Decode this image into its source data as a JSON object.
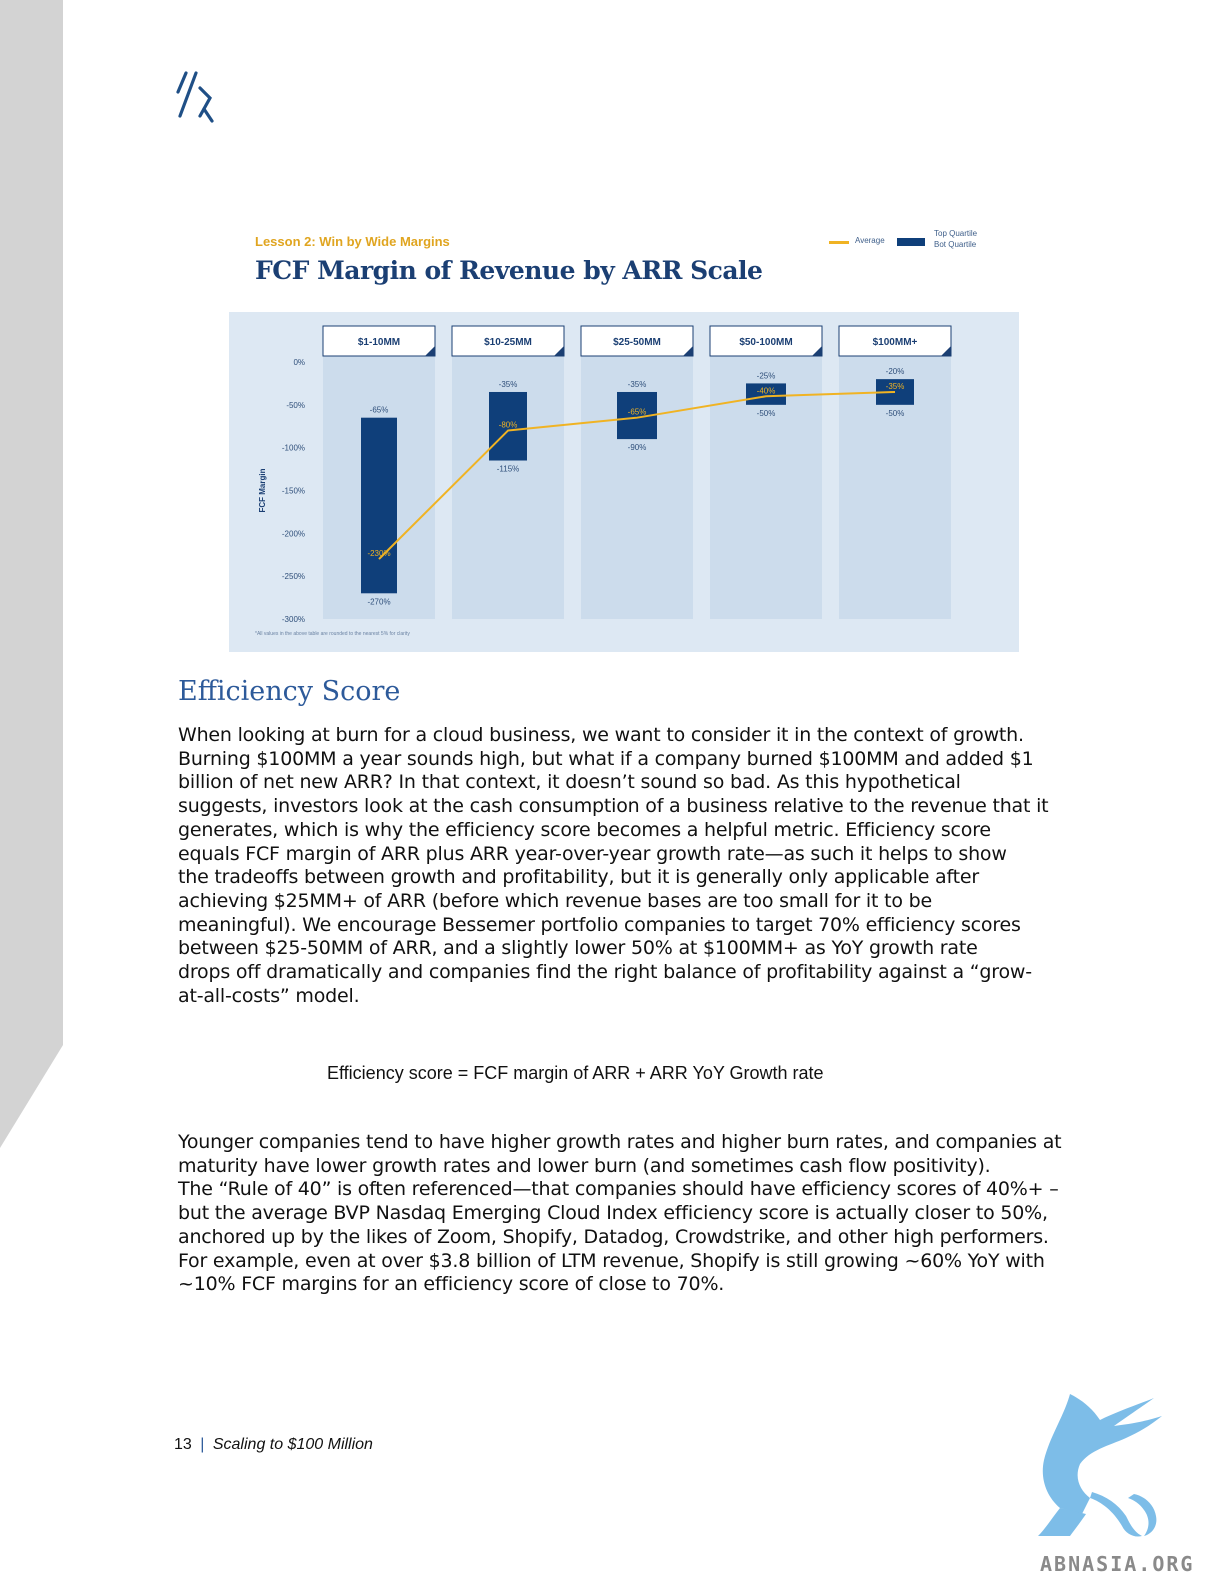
{
  "chart": {
    "lesson": "Lesson 2: Win by Wide Margins",
    "title": "FCF Margin of Revenue by ARR Scale",
    "legend": {
      "average": "Average",
      "top": "Top Quartile",
      "bot": "Bot Quartile"
    },
    "ylabel": "FCF Margin",
    "footnote": "*All values in the above table are rounded to the nearest 5% for clarity"
  },
  "chart_data": {
    "type": "bar",
    "title": "FCF Margin of Revenue by ARR Scale",
    "ylabel": "FCF Margin",
    "ylim": [
      -300,
      0
    ],
    "yticks": [
      0,
      -50,
      -100,
      -150,
      -200,
      -250,
      -300
    ],
    "yticklabels": [
      "0%",
      "-50%",
      "-100%",
      "-150%",
      "-200%",
      "-250%",
      "-300%"
    ],
    "categories": [
      "$1-10MM",
      "$10-25MM",
      "$25-50MM",
      "$50-100MM",
      "$100MM+"
    ],
    "series": [
      {
        "name": "Top Quartile",
        "values": [
          -65,
          -35,
          -35,
          -25,
          -20
        ],
        "labels": [
          "-65%",
          "-35%",
          "-35%",
          "-25%",
          "-20%"
        ]
      },
      {
        "name": "Bot Quartile",
        "values": [
          -270,
          -115,
          -90,
          -50,
          -50
        ],
        "labels": [
          "-270%",
          "-115%",
          "-90%",
          "-50%",
          "-50%"
        ]
      },
      {
        "name": "Average",
        "values": [
          -230,
          -80,
          -65,
          -40,
          -35
        ],
        "labels": [
          "-230%",
          "-80%",
          "-65%",
          "-40%",
          "-35%"
        ]
      }
    ],
    "colors": {
      "bar": "#0f3f7a",
      "average": "#f0b323",
      "column_bg": "#c6d8ea",
      "plot_bg": "#dde8f3"
    }
  },
  "section": {
    "heading": "Efficiency Score",
    "para1": "When looking at burn for a cloud business, we want to consider it in the context of growth.\nBurning $100MM a year sounds high, but what if a company burned $100MM and added $1\nbillion of net new ARR? In that context, it doesn’t sound so bad. As this hypothetical\nsuggests, investors look at the cash consumption of a business relative to the revenue that it\ngenerates, which is why the efficiency score becomes a helpful metric. Efficiency score\nequals FCF margin of ARR plus ARR year-over-year growth rate—as such it helps to show\nthe tradeoffs between growth and profitability, but it is generally only applicable after\nachieving $25MM+ of ARR (before which revenue bases are too small for it to be\nmeaningful). We encourage Bessemer portfolio companies to target 70% efficiency scores\nbetween $25-50MM of ARR, and a slightly lower 50% at $100MM+ as YoY growth rate\ndrops off dramatically and companies find the right balance of profitability against a “grow-\nat-all-costs” model.",
    "formula": "Efficiency score = FCF margin of ARR + ARR YoY Growth rate",
    "para2": "Younger companies tend to have higher growth rates and higher burn rates, and companies at\nmaturity have lower growth rates and lower burn (and sometimes cash flow positivity).\nThe “Rule of 40” is often referenced—that companies should have efficiency scores of 40%+ –\nbut the average BVP Nasdaq Emerging Cloud Index efficiency score is actually closer to 50%,\nanchored up by the likes of Zoom, Shopify, Datadog, Crowdstrike, and other high performers.\nFor example, even at over $3.8 billion of LTM revenue, Shopify is still growing ~60% YoY with\n~10% FCF margins for an efficiency score of close to 70%."
  },
  "footer": {
    "page": "13",
    "separator": "|",
    "doc_title": "Scaling to $100 Million"
  },
  "watermark": {
    "text": "ABNASIA.ORG"
  }
}
